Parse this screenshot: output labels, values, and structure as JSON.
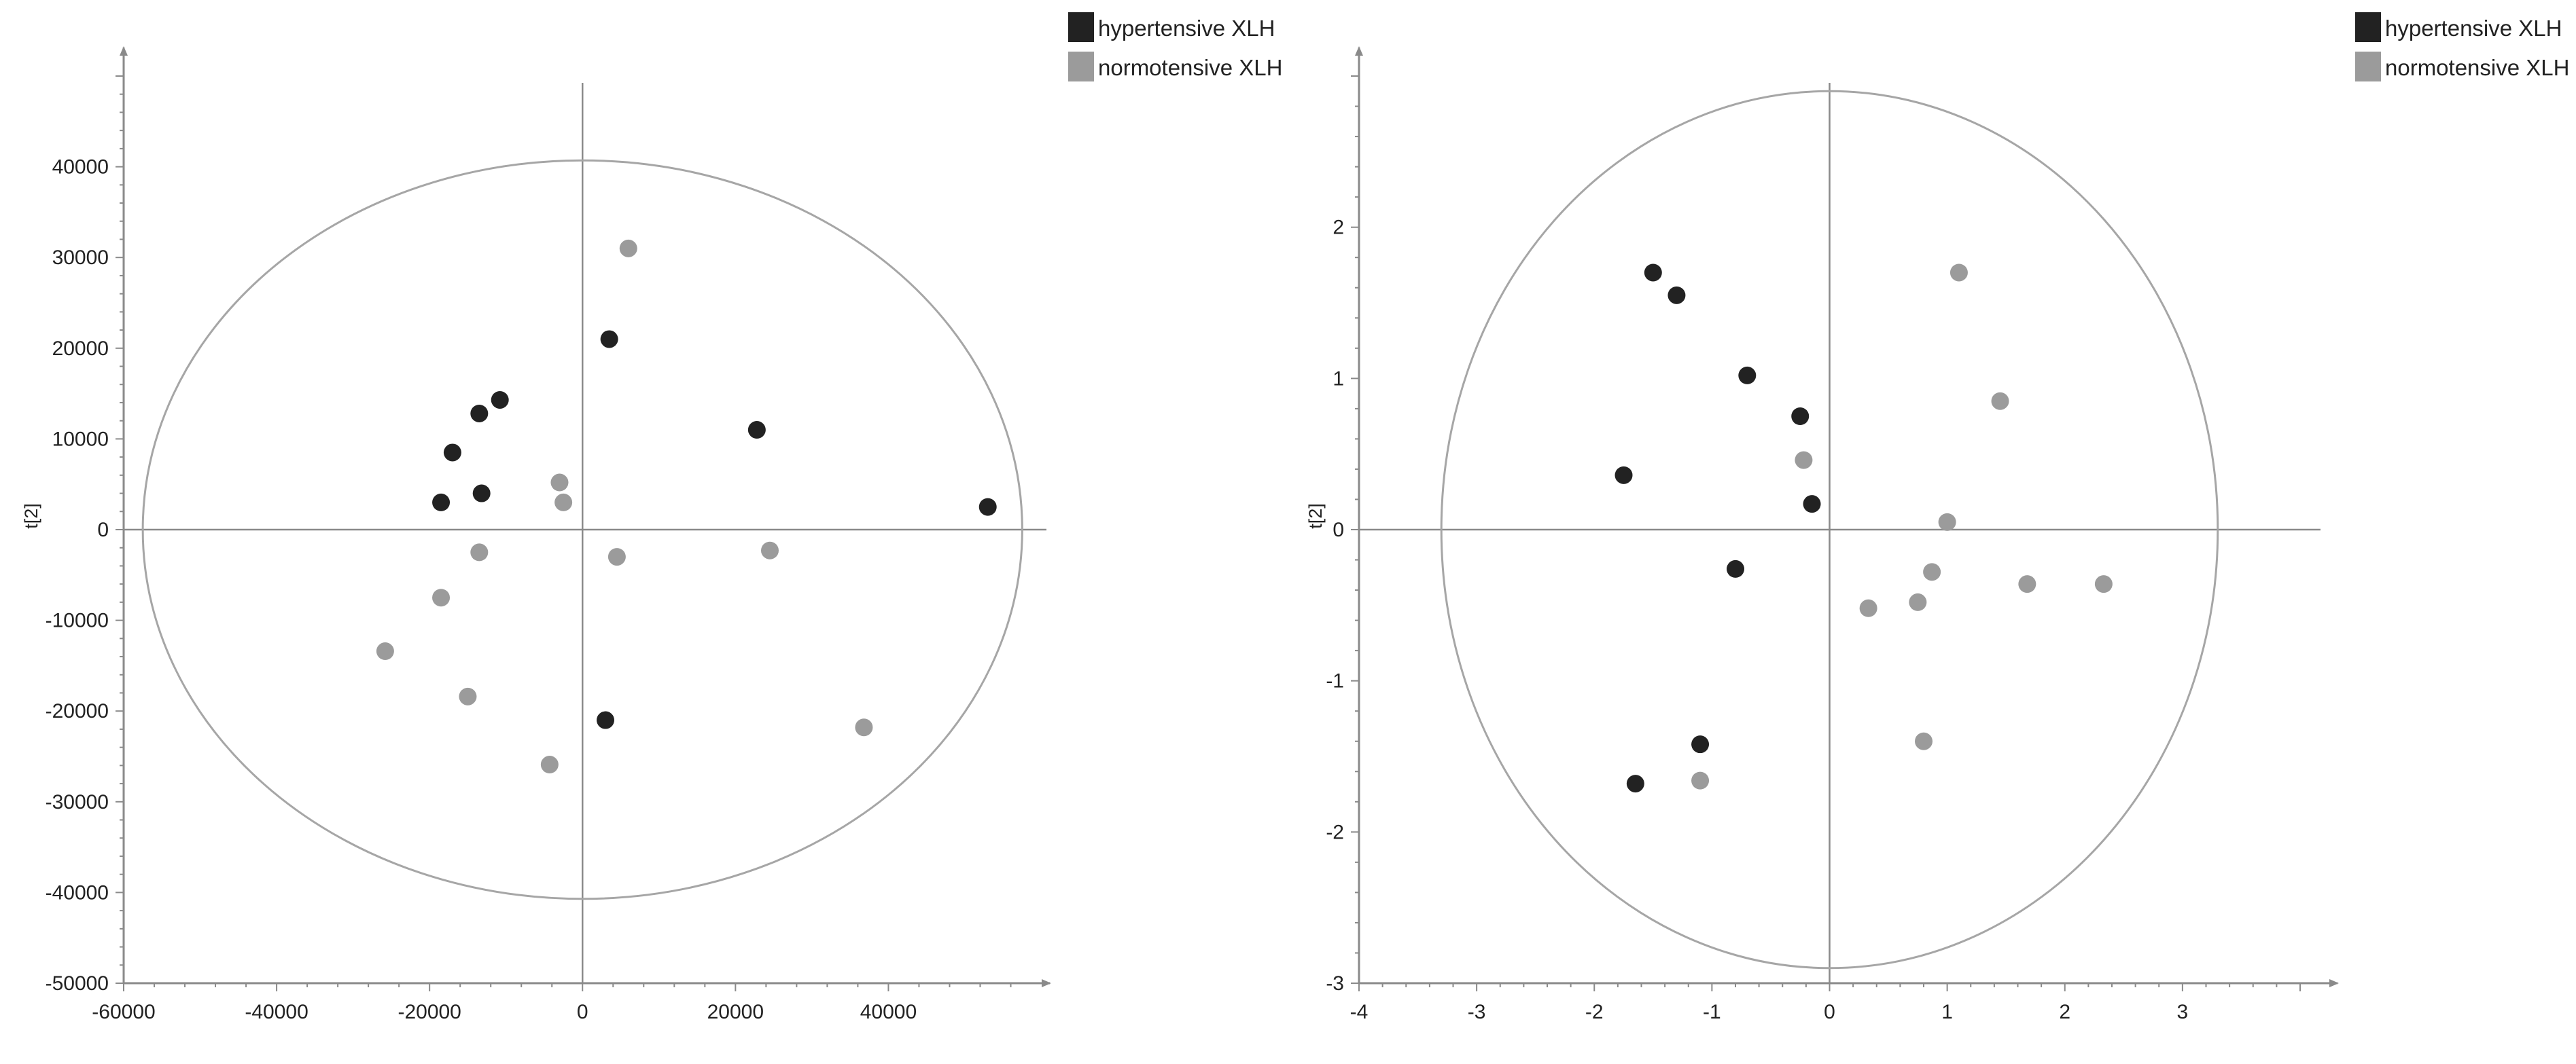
{
  "colors": {
    "hypertensive": "#222222",
    "normotensive": "#9b9b9b",
    "axis": "#8a8a8a",
    "ellipse": "#a6a6a6"
  },
  "chart_data": [
    {
      "type": "scatter",
      "title": "",
      "xlabel": "",
      "ylabel": "t[2]",
      "xlim": [
        -60000,
        58000
      ],
      "ylim": [
        -50000,
        50000
      ],
      "x_ticks": [
        -60000,
        -40000,
        -20000,
        0,
        20000,
        40000
      ],
      "y_ticks": [
        40000,
        30000,
        20000,
        10000,
        0,
        -10000,
        -20000,
        -30000,
        -40000,
        -50000
      ],
      "ellipse": {
        "rx": 57500,
        "ry": 40700
      },
      "legend": {
        "position": "top-right"
      },
      "series": [
        {
          "name": "hypertensive XLH",
          "color": "#222222",
          "points": [
            [
              -18500,
              3000
            ],
            [
              -17000,
              8500
            ],
            [
              -13500,
              12800
            ],
            [
              -13200,
              4000
            ],
            [
              -10800,
              14300
            ],
            [
              3500,
              21000
            ],
            [
              22800,
              11000
            ],
            [
              53000,
              2500
            ],
            [
              3000,
              -21000
            ]
          ]
        },
        {
          "name": "normotensive XLH",
          "color": "#9b9b9b",
          "points": [
            [
              6000,
              31000
            ],
            [
              -3000,
              5200
            ],
            [
              -2500,
              3000
            ],
            [
              -13500,
              -2500
            ],
            [
              4500,
              -3000
            ],
            [
              24500,
              -2300
            ],
            [
              -18500,
              -7500
            ],
            [
              -25800,
              -13400
            ],
            [
              -15000,
              -18400
            ],
            [
              -4300,
              -25900
            ],
            [
              36800,
              -21800
            ]
          ]
        }
      ]
    },
    {
      "type": "scatter",
      "title": "",
      "xlabel": "",
      "ylabel": "t[2]",
      "xlim": [
        -4,
        4
      ],
      "ylim": [
        -3,
        3
      ],
      "x_ticks": [
        -4,
        -3,
        -2,
        -1,
        0,
        1,
        2,
        3
      ],
      "y_ticks": [
        2,
        1,
        0,
        -1,
        -2,
        -3
      ],
      "ellipse": {
        "rx": 3.3,
        "ry": 2.9
      },
      "legend": {
        "position": "top-right"
      },
      "series": [
        {
          "name": "hypertensive XLH",
          "color": "#222222",
          "points": [
            [
              -1.5,
              1.7
            ],
            [
              -1.3,
              1.55
            ],
            [
              -0.7,
              1.02
            ],
            [
              -0.25,
              0.75
            ],
            [
              -1.75,
              0.36
            ],
            [
              -0.15,
              0.17
            ],
            [
              -0.8,
              -0.26
            ],
            [
              -1.1,
              -1.42
            ],
            [
              -1.65,
              -1.68
            ]
          ]
        },
        {
          "name": "normotensive XLH",
          "color": "#9b9b9b",
          "points": [
            [
              1.1,
              1.7
            ],
            [
              1.45,
              0.85
            ],
            [
              -0.22,
              0.46
            ],
            [
              1.0,
              0.05
            ],
            [
              0.87,
              -0.28
            ],
            [
              0.75,
              -0.48
            ],
            [
              0.33,
              -0.52
            ],
            [
              1.68,
              -0.36
            ],
            [
              2.33,
              -0.36
            ],
            [
              0.8,
              -1.4
            ],
            [
              -1.1,
              -1.66
            ]
          ]
        }
      ]
    }
  ]
}
